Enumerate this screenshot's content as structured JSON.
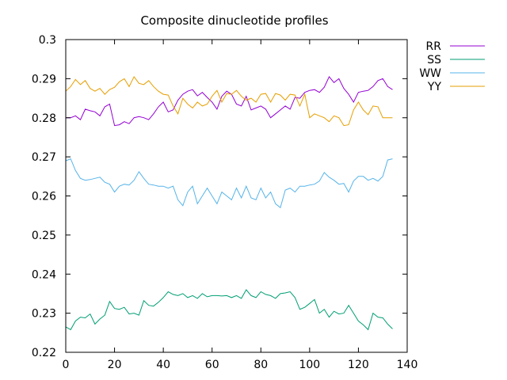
{
  "chart_data": {
    "type": "line",
    "title": "Composite dinucleotide profiles",
    "xlabel": "",
    "ylabel": "",
    "xlim": [
      0,
      140
    ],
    "ylim": [
      0.22,
      0.3
    ],
    "xticks": [
      "0",
      "20",
      "40",
      "60",
      "80",
      "100",
      "120",
      "140"
    ],
    "yticks": [
      "0.22",
      "0.23",
      "0.24",
      "0.25",
      "0.26",
      "0.27",
      "0.28",
      "0.29",
      "0.3"
    ],
    "legend_position": "outside-top-right",
    "grid": false,
    "series": [
      {
        "name": "RR",
        "color": "#9400d3",
        "x": [
          0,
          2,
          4,
          6,
          8,
          10,
          12,
          14,
          16,
          18,
          20,
          22,
          24,
          26,
          28,
          30,
          32,
          34,
          36,
          38,
          40,
          42,
          44,
          46,
          48,
          50,
          52,
          54,
          56,
          58,
          60,
          62,
          64,
          66,
          68,
          70,
          72,
          74,
          76,
          78,
          80,
          82,
          84,
          86,
          88,
          90,
          92,
          94,
          96,
          98,
          100,
          102,
          104,
          106,
          108,
          110,
          112,
          114,
          116,
          118,
          120,
          122,
          124,
          126,
          128,
          130,
          132,
          134
        ],
        "values": [
          0.28,
          0.28,
          0.2805,
          0.2795,
          0.2822,
          0.2818,
          0.2815,
          0.2805,
          0.2828,
          0.2835,
          0.278,
          0.2782,
          0.279,
          0.2785,
          0.28,
          0.2803,
          0.28,
          0.2795,
          0.281,
          0.2828,
          0.284,
          0.2815,
          0.282,
          0.2845,
          0.286,
          0.2868,
          0.2872,
          0.2856,
          0.2865,
          0.2852,
          0.284,
          0.2822,
          0.2855,
          0.2868,
          0.286,
          0.2835,
          0.283,
          0.2855,
          0.282,
          0.2825,
          0.283,
          0.2822,
          0.28,
          0.281,
          0.282,
          0.283,
          0.2822,
          0.2852,
          0.285,
          0.2865,
          0.287,
          0.2872,
          0.2865,
          0.2878,
          0.2905,
          0.289,
          0.29,
          0.2875,
          0.286,
          0.284,
          0.2865,
          0.2868,
          0.287,
          0.288,
          0.2895,
          0.29,
          0.288,
          0.2872
        ]
      },
      {
        "name": "SS",
        "color": "#009e73",
        "x": [
          0,
          2,
          4,
          6,
          8,
          10,
          12,
          14,
          16,
          18,
          20,
          22,
          24,
          26,
          28,
          30,
          32,
          34,
          36,
          38,
          40,
          42,
          44,
          46,
          48,
          50,
          52,
          54,
          56,
          58,
          60,
          62,
          64,
          66,
          68,
          70,
          72,
          74,
          76,
          78,
          80,
          82,
          84,
          86,
          88,
          90,
          92,
          94,
          96,
          98,
          100,
          102,
          104,
          106,
          108,
          110,
          112,
          114,
          116,
          118,
          120,
          122,
          124,
          126,
          128,
          130,
          132,
          134
        ],
        "values": [
          0.2265,
          0.2258,
          0.228,
          0.229,
          0.2288,
          0.2298,
          0.2272,
          0.2285,
          0.2295,
          0.233,
          0.2312,
          0.231,
          0.2315,
          0.2298,
          0.23,
          0.2295,
          0.2332,
          0.232,
          0.2318,
          0.2328,
          0.234,
          0.2355,
          0.2348,
          0.2345,
          0.235,
          0.234,
          0.2345,
          0.2338,
          0.235,
          0.2342,
          0.2345,
          0.2345,
          0.2344,
          0.2345,
          0.234,
          0.2345,
          0.2338,
          0.236,
          0.2345,
          0.234,
          0.2355,
          0.2348,
          0.2345,
          0.2338,
          0.235,
          0.2352,
          0.2355,
          0.234,
          0.231,
          0.2315,
          0.2325,
          0.2335,
          0.23,
          0.231,
          0.229,
          0.2305,
          0.2298,
          0.23,
          0.232,
          0.23,
          0.228,
          0.227,
          0.2258,
          0.23,
          0.229,
          0.2288,
          0.2272,
          0.226
        ]
      },
      {
        "name": "WW",
        "color": "#56b4e9",
        "x": [
          0,
          2,
          4,
          6,
          8,
          10,
          12,
          14,
          16,
          18,
          20,
          22,
          24,
          26,
          28,
          30,
          32,
          34,
          36,
          38,
          40,
          42,
          44,
          46,
          48,
          50,
          52,
          54,
          56,
          58,
          60,
          62,
          64,
          66,
          68,
          70,
          72,
          74,
          76,
          78,
          80,
          82,
          84,
          86,
          88,
          90,
          92,
          94,
          96,
          98,
          100,
          102,
          104,
          106,
          108,
          110,
          112,
          114,
          116,
          118,
          120,
          122,
          124,
          126,
          128,
          130,
          132,
          134
        ],
        "values": [
          0.269,
          0.2695,
          0.2665,
          0.2645,
          0.264,
          0.2642,
          0.2645,
          0.2648,
          0.2635,
          0.263,
          0.261,
          0.2625,
          0.263,
          0.2628,
          0.264,
          0.2662,
          0.2645,
          0.263,
          0.2628,
          0.2625,
          0.2625,
          0.262,
          0.2625,
          0.259,
          0.2575,
          0.261,
          0.2625,
          0.258,
          0.26,
          0.262,
          0.26,
          0.258,
          0.261,
          0.26,
          0.259,
          0.262,
          0.2595,
          0.2625,
          0.2595,
          0.259,
          0.262,
          0.2595,
          0.261,
          0.258,
          0.257,
          0.2615,
          0.262,
          0.261,
          0.2625,
          0.2625,
          0.2628,
          0.263,
          0.2638,
          0.266,
          0.2648,
          0.264,
          0.263,
          0.2632,
          0.261,
          0.2638,
          0.265,
          0.265,
          0.264,
          0.2645,
          0.2638,
          0.265,
          0.2692,
          0.2695
        ]
      },
      {
        "name": "YY",
        "color": "#e69f00",
        "x": [
          0,
          2,
          4,
          6,
          8,
          10,
          12,
          14,
          16,
          18,
          20,
          22,
          24,
          26,
          28,
          30,
          32,
          34,
          36,
          38,
          40,
          42,
          44,
          46,
          48,
          50,
          52,
          54,
          56,
          58,
          60,
          62,
          64,
          66,
          68,
          70,
          72,
          74,
          76,
          78,
          80,
          82,
          84,
          86,
          88,
          90,
          92,
          94,
          96,
          98,
          100,
          102,
          104,
          106,
          108,
          110,
          112,
          114,
          116,
          118,
          120,
          122,
          124,
          126,
          128,
          130,
          132,
          134
        ],
        "values": [
          0.2868,
          0.288,
          0.2898,
          0.2885,
          0.2895,
          0.2875,
          0.2868,
          0.2875,
          0.286,
          0.2872,
          0.2878,
          0.2892,
          0.29,
          0.288,
          0.2905,
          0.2888,
          0.2885,
          0.2895,
          0.288,
          0.2868,
          0.286,
          0.2858,
          0.283,
          0.281,
          0.285,
          0.2835,
          0.2825,
          0.284,
          0.283,
          0.2835,
          0.2855,
          0.287,
          0.284,
          0.2862,
          0.286,
          0.287,
          0.2855,
          0.2845,
          0.285,
          0.284,
          0.286,
          0.2862,
          0.284,
          0.2862,
          0.2858,
          0.2845,
          0.286,
          0.2858,
          0.283,
          0.286,
          0.28,
          0.281,
          0.2805,
          0.28,
          0.279,
          0.2805,
          0.28,
          0.278,
          0.2782,
          0.282,
          0.284,
          0.282,
          0.2808,
          0.283,
          0.2828,
          0.28,
          0.28,
          0.28
        ]
      }
    ]
  }
}
